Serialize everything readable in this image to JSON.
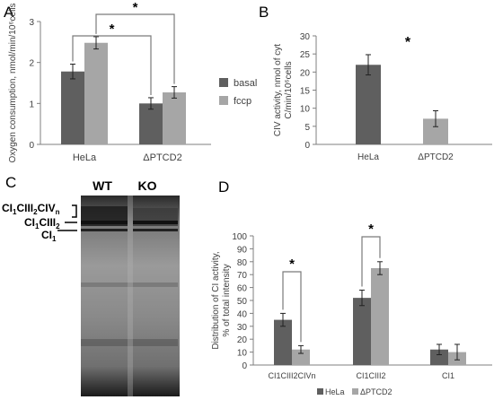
{
  "colors": {
    "dark": "#5f5f5f",
    "light": "#a6a6a6",
    "axis": "#7f7f7f",
    "text": "#404040"
  },
  "panels": {
    "A": "A",
    "B": "B",
    "C": "C",
    "D": "D"
  },
  "chart_data": [
    {
      "panel": "A",
      "type": "bar",
      "ylabel": "Oxygen consumption, nmol/min/10⁶cells",
      "ylim": [
        0,
        3
      ],
      "yticks": [
        0,
        1,
        2,
        3
      ],
      "categories": [
        "HeLa",
        "ΔPTCD2"
      ],
      "series": [
        {
          "name": "basal",
          "color": "#5f5f5f",
          "values": [
            1.78,
            1.0
          ],
          "errors": [
            0.18,
            0.14
          ]
        },
        {
          "name": "fccp",
          "color": "#a6a6a6",
          "values": [
            2.48,
            1.27
          ],
          "errors": [
            0.15,
            0.14
          ]
        }
      ],
      "legend": [
        "basal",
        "fccp"
      ],
      "legend_position": "right",
      "significance": [
        {
          "label": "*",
          "from": [
            "HeLa",
            "basal"
          ],
          "to": [
            "ΔPTCD2",
            "basal"
          ]
        },
        {
          "label": "*",
          "from": [
            "HeLa",
            "fccp"
          ],
          "to": [
            "ΔPTCD2",
            "fccp"
          ]
        }
      ]
    },
    {
      "panel": "B",
      "type": "bar",
      "ylabel_lines": [
        "CIV activity, nmol of cyt",
        "C/min/10⁶cells"
      ],
      "ylim": [
        0,
        30
      ],
      "yticks": [
        0,
        5,
        10,
        15,
        20,
        25,
        30
      ],
      "categories": [
        "HeLa",
        "ΔPTCD2"
      ],
      "values": [
        22,
        7.1
      ],
      "errors": [
        2.8,
        2.2
      ],
      "colors": [
        "#5f5f5f",
        "#a6a6a6"
      ],
      "annotation": "*"
    },
    {
      "panel": "D",
      "type": "bar",
      "ylabel_lines": [
        "Distribution of CI activity,",
        "% of total intensity"
      ],
      "ylim": [
        0,
        100
      ],
      "yticks": [
        0,
        10,
        20,
        30,
        40,
        50,
        60,
        70,
        80,
        90,
        100
      ],
      "categories": [
        "CI1CIII2CIVn",
        "CI1CIII2",
        "CI1"
      ],
      "series": [
        {
          "name": "HeLa",
          "color": "#5f5f5f",
          "values": [
            35,
            52,
            12
          ],
          "errors": [
            5,
            6,
            4
          ]
        },
        {
          "name": "ΔPTCD2",
          "color": "#a6a6a6",
          "values": [
            12,
            75,
            10
          ],
          "errors": [
            3,
            5,
            6
          ]
        }
      ],
      "legend": [
        "HeLa",
        "ΔPTCD2"
      ],
      "legend_position": "bottom",
      "significance": [
        {
          "label": "*",
          "category": "CI1CIII2CIVn"
        },
        {
          "label": "*",
          "category": "CI1CIII2"
        }
      ]
    }
  ],
  "gel": {
    "lanes": [
      "WT",
      "KO"
    ],
    "band_labels": {
      "b1": {
        "base": "CI",
        "s1": "1",
        "mid": "CIII",
        "s2": "2",
        "tail": "CIV",
        "s3": "n"
      },
      "b2": {
        "base": "CI",
        "s1": "1",
        "mid": "CIII",
        "s2": "2"
      },
      "b3": {
        "base": "CI",
        "s1": "1"
      }
    }
  }
}
